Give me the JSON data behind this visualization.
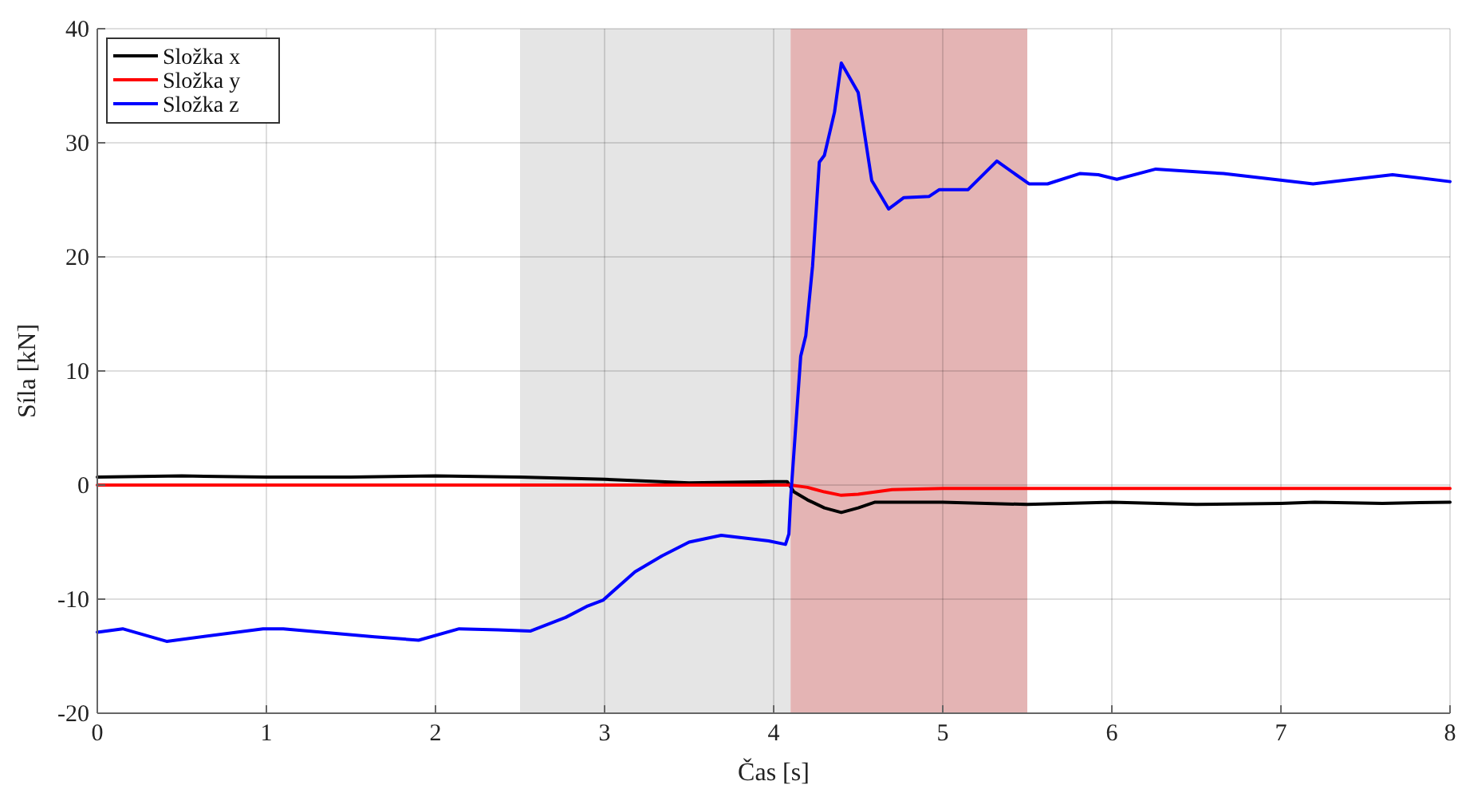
{
  "chart_data": {
    "type": "line",
    "xlabel": "Čas [s]",
    "ylabel": "Síla [kN]",
    "xlim": [
      0,
      8
    ],
    "ylim": [
      -20,
      40
    ],
    "xticks": [
      0,
      1,
      2,
      3,
      4,
      5,
      6,
      7,
      8
    ],
    "yticks": [
      -20,
      -10,
      0,
      10,
      20,
      30,
      40
    ],
    "grid": true,
    "legend": "top left",
    "line_style": "solid",
    "bands": [
      {
        "axis": "x",
        "from": 2.5,
        "to": 4.1,
        "color": "#e5e5e5"
      },
      {
        "axis": "x",
        "from": 4.1,
        "to": 5.5,
        "color": "#e4b4b4"
      }
    ],
    "series": [
      {
        "name": "Složka x",
        "color": "#000000",
        "x": [
          0,
          0.5,
          1,
          1.5,
          2,
          2.5,
          3,
          3.5,
          4,
          4.08,
          4.12,
          4.2,
          4.3,
          4.4,
          4.5,
          4.6,
          5,
          5.5,
          6,
          6.5,
          7,
          7.2,
          7.6,
          8
        ],
        "values": [
          0.7,
          0.8,
          0.7,
          0.7,
          0.8,
          0.7,
          0.5,
          0.2,
          0.3,
          0.3,
          -0.6,
          -1.3,
          -2,
          -2.4,
          -2,
          -1.5,
          -1.5,
          -1.7,
          -1.5,
          -1.7,
          -1.6,
          -1.5,
          -1.6,
          -1.5
        ]
      },
      {
        "name": "Složka y",
        "color": "#ff0000",
        "x": [
          0,
          1,
          2,
          3,
          4,
          4.1,
          4.2,
          4.3,
          4.4,
          4.5,
          4.7,
          5,
          6,
          7,
          8
        ],
        "values": [
          0,
          0,
          0,
          0,
          0,
          0,
          -0.2,
          -0.6,
          -0.9,
          -0.8,
          -0.4,
          -0.3,
          -0.3,
          -0.3,
          -0.3
        ]
      },
      {
        "name": "Složka z",
        "color": "#0000ff",
        "x": [
          0,
          0.15,
          0.41,
          0.98,
          1.1,
          1.64,
          1.9,
          2.14,
          2.37,
          2.56,
          2.77,
          2.9,
          2.99,
          3.18,
          3.34,
          3.5,
          3.69,
          3.97,
          4.07,
          4.09,
          4.1,
          4.16,
          4.19,
          4.23,
          4.27,
          4.3,
          4.36,
          4.4,
          4.5,
          4.58,
          4.68,
          4.77,
          4.92,
          4.98,
          5.15,
          5.32,
          5.51,
          5.62,
          5.81,
          5.92,
          6.03,
          6.26,
          6.66,
          7.19,
          7.66,
          8
        ],
        "values": [
          -12.9,
          -12.6,
          -13.7,
          -12.6,
          -12.6,
          -13.3,
          -13.6,
          -12.6,
          -12.7,
          -12.8,
          -11.6,
          -10.6,
          -10.1,
          -7.6,
          -6.2,
          -5,
          -4.4,
          -4.9,
          -5.2,
          -4.3,
          -1.3,
          11.3,
          13.1,
          19.2,
          28.3,
          28.9,
          32.7,
          37,
          34.4,
          26.7,
          24.2,
          25.2,
          25.3,
          25.9,
          25.9,
          28.4,
          26.4,
          26.4,
          27.3,
          27.2,
          26.8,
          27.7,
          27.3,
          26.4,
          27.2,
          26.6
        ]
      }
    ]
  }
}
